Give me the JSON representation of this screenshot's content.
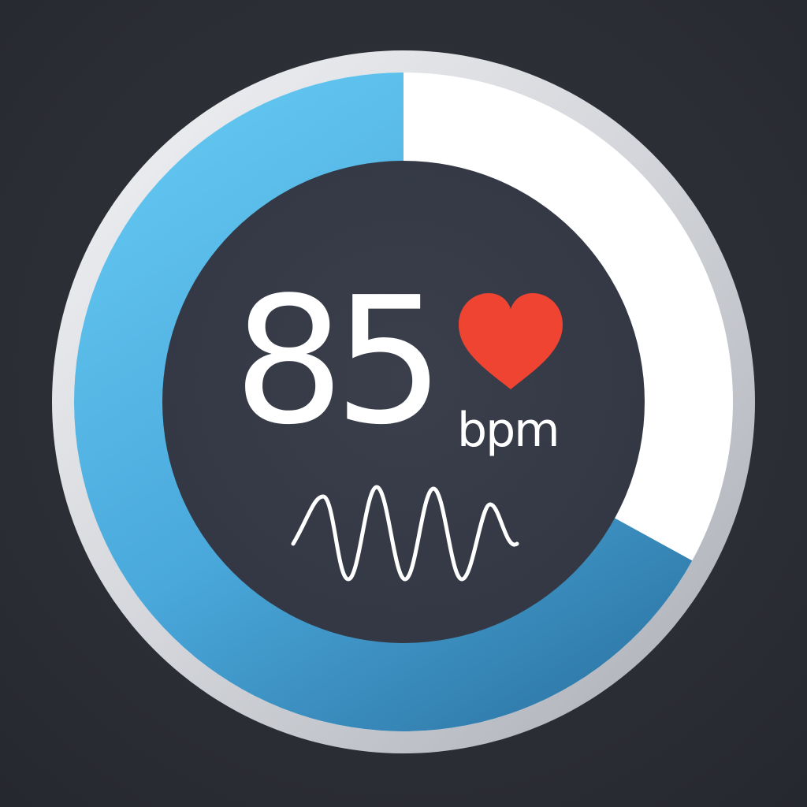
{
  "heart_rate": {
    "value": "85",
    "unit": "bpm"
  },
  "gauge": {
    "progress_fraction": 0.67
  },
  "icons": {
    "heart": "heart-icon",
    "waveform": "pulse-waveform-icon"
  },
  "colors": {
    "background": "#2b2e35",
    "inner_disc": "#363b46",
    "ring_track": "#ffffff",
    "ring_progress_light": "#5fc3ee",
    "ring_progress_dark": "#2f79a8",
    "heart": "#f04432",
    "text": "#ffffff",
    "bezel": "#d9dbdf"
  }
}
